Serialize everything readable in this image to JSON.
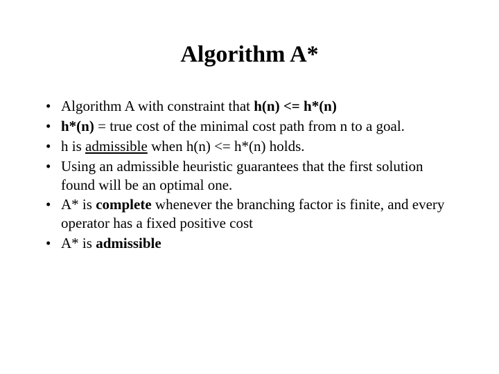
{
  "type": "slide",
  "background_color": "#ffffff",
  "text_color": "#000000",
  "font_family": "Times New Roman",
  "title": {
    "text": "Algorithm A*",
    "fontsize": 34,
    "weight": "bold",
    "align": "center"
  },
  "bullets": {
    "fontsize": 21,
    "items": [
      {
        "html": "Algorithm A with constraint that <b>h(n) &lt;= h*(n)</b>"
      },
      {
        "html": "<b>h*(n)</b> = true cost of the minimal cost path from n to a goal."
      },
      {
        "html": "h is <u>admissible</u> when h(n) &lt;= h*(n) holds."
      },
      {
        "html": "Using an admissible heuristic guarantees that the first solution found will be an optimal one."
      },
      {
        "html": "A* is <b>complete</b> whenever the branching factor is finite, and every operator has a fixed positive cost"
      },
      {
        "html": "A* is <b>admissible</b>"
      }
    ]
  }
}
